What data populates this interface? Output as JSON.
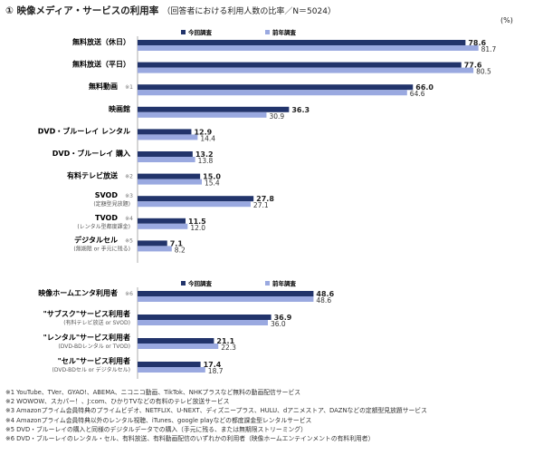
{
  "header": {
    "title": "① 映像メディア・サービスの利用率",
    "subtitle": "（回答者における利用人数の比率／N＝5024）",
    "unit": "(%)"
  },
  "legend": {
    "current": "今回調査",
    "previous": "前年調査"
  },
  "colors": {
    "current": "#22346b",
    "previous": "#9aa9e0"
  },
  "chart_data": [
    {
      "type": "bar",
      "orientation": "horizontal",
      "categories": [
        "無料放送（休日）",
        "無料放送（平日）",
        "無料動画",
        "映画館",
        "DVD・ブルーレイ レンタル",
        "DVD・ブルーレイ 購入",
        "有料テレビ放送",
        "SVOD",
        "TVOD",
        "デジタルセル"
      ],
      "category_notes": [
        "",
        "",
        "※1",
        "",
        "",
        "",
        "※2",
        "※3",
        "※4",
        "※5"
      ],
      "category_sublabels": [
        "",
        "",
        "",
        "",
        "",
        "",
        "",
        "(定額型見放題)",
        "(レンタル型都度課金)",
        "(無期限 or 手元に残る)"
      ],
      "series": [
        {
          "name": "今回調査",
          "values": [
            78.6,
            77.6,
            66.0,
            36.3,
            12.9,
            13.2,
            15.0,
            27.8,
            11.5,
            7.1
          ]
        },
        {
          "name": "前年調査",
          "values": [
            81.7,
            80.5,
            64.6,
            30.9,
            14.4,
            13.8,
            15.4,
            27.1,
            12.0,
            8.2
          ]
        }
      ],
      "xlim": [
        0,
        100
      ]
    },
    {
      "type": "bar",
      "orientation": "horizontal",
      "categories": [
        "映像ホームエンタ利用者",
        "\"サブスク\"サービス利用者",
        "\"レンタル\"サービス利用者",
        "\"セル\"サービス利用者"
      ],
      "category_notes": [
        "※6",
        "",
        "",
        ""
      ],
      "category_sublabels": [
        "",
        "(有料テレビ放送 or SVOD)",
        "(DVD-BDレンタル or TVOD)",
        "(DVD-BDセル or デジタルセル)"
      ],
      "series": [
        {
          "name": "今回調査",
          "values": [
            48.6,
            36.9,
            21.1,
            17.4
          ]
        },
        {
          "name": "前年調査",
          "values": [
            48.6,
            36.0,
            22.3,
            18.7
          ]
        }
      ],
      "xlim": [
        0,
        100
      ]
    }
  ],
  "footnotes": [
    "※1 YouTube、TVer、GYAO!、ABEMA、ニコニコ動画、TikTok、NHKプラスなど無料の動画配信サービス",
    "※2 WOWOW、スカパー！、J:com、ひかりTVなどの有料のテレビ放送サービス",
    "※3 Amazonプライム会員特典のプライムビデオ、NETFLIX、U-NEXT、ディズニープラス、HULU、dアニメストア、DAZNなどの定額型見放題サービス",
    "※4 Amazonプライム会員特典以外のレンタル視聴、iTunes、google playなどの都度課金型レンタルサービス",
    "※5 DVD・ブルーレイの購入と同様のデジタルデータでの購入（手元に残る、または無期限ストリーミング）",
    "※6 DVD・ブルーレイのレンタル・セル、有料放送、有料動画配信のいずれかの利用者（映像ホームエンテインメントの有料利用者）"
  ]
}
